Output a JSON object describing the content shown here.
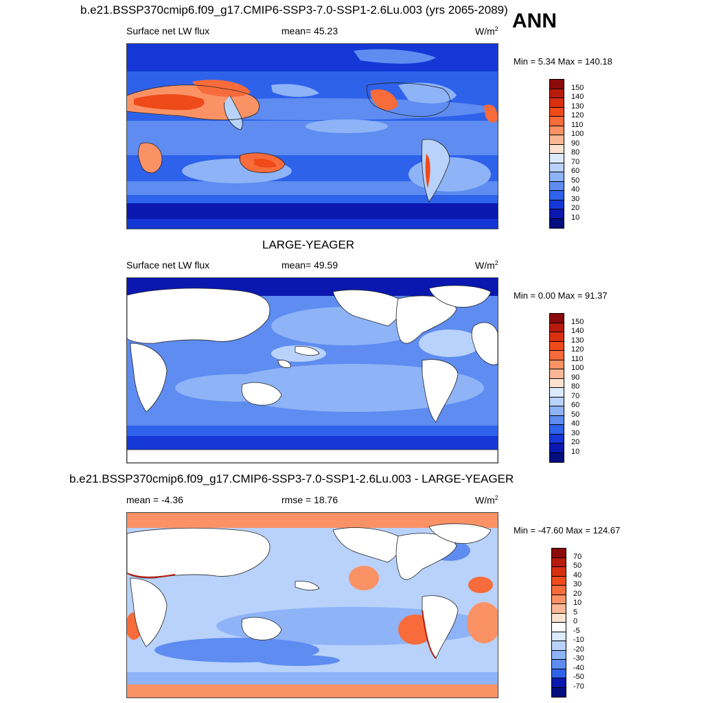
{
  "panel1": {
    "title": "b.e21.BSSP370cmip6.f09_g17.CMIP6-SSP3-7.0-SSP1-2.6Lu.003 (yrs 2065-2089)",
    "season": "ANN",
    "left": "Surface net LW flux",
    "center": "mean=  45.23",
    "units_base": "W/m",
    "units_sup": "2",
    "minmax": "Min =   5.34 Max = 140.18",
    "labels": [
      "150",
      "140",
      "130",
      "120",
      "110",
      "100",
      "90",
      "80",
      "70",
      "60",
      "50",
      "40",
      "30",
      "20",
      "10"
    ],
    "colors": [
      "#8b0a0a",
      "#b81b0b",
      "#d9300f",
      "#ef4a1a",
      "#f86b3a",
      "#fa9266",
      "#fbb896",
      "#fde3cf",
      "#dceafd",
      "#b8d2fb",
      "#8eb3f7",
      "#5e8cf0",
      "#2f62ea",
      "#1437d6",
      "#0a18b0",
      "#050e7e"
    ]
  },
  "panel2": {
    "title": "LARGE-YEAGER",
    "left": "Surface net LW flux",
    "center": "mean=  49.59",
    "units_base": "W/m",
    "units_sup": "2",
    "minmax": "Min =   0.00 Max =  91.37",
    "labels": [
      "150",
      "140",
      "130",
      "120",
      "110",
      "100",
      "90",
      "80",
      "70",
      "60",
      "50",
      "40",
      "30",
      "20",
      "10"
    ],
    "colors": [
      "#8b0a0a",
      "#b81b0b",
      "#d9300f",
      "#ef4a1a",
      "#f86b3a",
      "#fa9266",
      "#fbb896",
      "#fde3cf",
      "#dceafd",
      "#b8d2fb",
      "#8eb3f7",
      "#5e8cf0",
      "#2f62ea",
      "#1437d6",
      "#0a18b0",
      "#050e7e"
    ]
  },
  "panel3": {
    "title": "b.e21.BSSP370cmip6.f09_g17.CMIP6-SSP3-7.0-SSP1-2.6Lu.003 - LARGE-YEAGER",
    "left": "mean =  -4.36",
    "center": "rmse =  18.76",
    "units_base": "W/m",
    "units_sup": "2",
    "minmax": "Min = -47.60 Max = 124.67",
    "labels": [
      "70",
      "50",
      "40",
      "30",
      "20",
      "10",
      "5",
      "0",
      "-5",
      "-10",
      "-20",
      "-30",
      "-40",
      "-50",
      "-70"
    ],
    "colors": [
      "#8b0a0a",
      "#b81b0b",
      "#d9300f",
      "#ef4a1a",
      "#f86b3a",
      "#fa9266",
      "#fbb896",
      "#fde3cf",
      "#ffffff",
      "#dceafd",
      "#b8d2fb",
      "#8eb3f7",
      "#5e8cf0",
      "#2f62ea",
      "#0a18b0",
      "#050e7e"
    ]
  }
}
